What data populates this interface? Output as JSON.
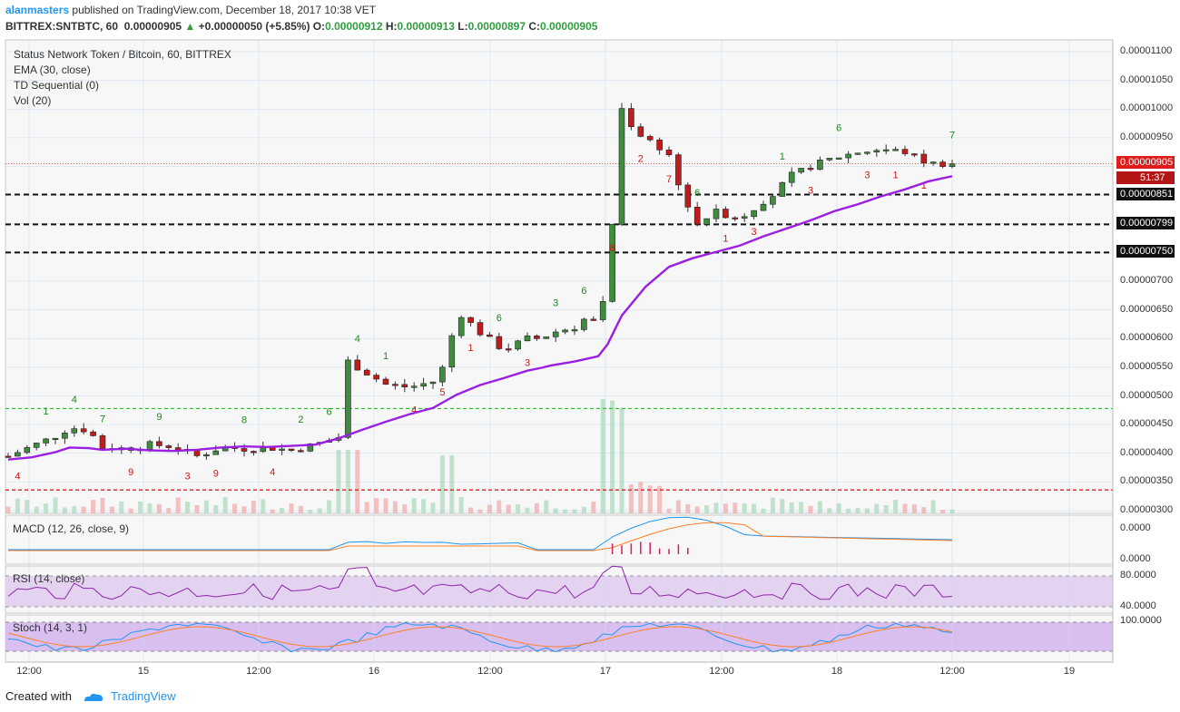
{
  "header": {
    "username": "alanmasters",
    "published_text": "published on TradingView.com, December 18, 2017 10:38 VET",
    "symbol": "BITTREX:SNTBTC, 60",
    "last": "0.00000905",
    "change": "+0.00000050 (+5.85%)",
    "o_label": "O:",
    "o": "0.00000912",
    "h_label": "H:",
    "h": "0.00000913",
    "l_label": "L:",
    "l": "0.00000897",
    "c_label": "C:",
    "c": "0.00000905"
  },
  "legend": {
    "title": "Status Network Token / Bitcoin, 60, BITTREX",
    "ema": "EMA (30, close)",
    "td": "TD Sequential (0)",
    "vol": "Vol (20)"
  },
  "indicators": {
    "macd": "MACD (12, 26, close, 9)",
    "rsi": "RSI (14, close)",
    "stoch": "Stoch (14, 3, 1)"
  },
  "price_boxes": {
    "last": "0.00000905",
    "countdown": "51:37",
    "level1": "0.00000851",
    "level2": "0.00000799",
    "level3": "0.00000750"
  },
  "footer": {
    "created_with": "Created with",
    "brand": "TradingView"
  },
  "colors": {
    "up": "#3f8c3f",
    "down": "#c41a1a",
    "ema": "#9b1fe0",
    "macd": "#2196f3",
    "signal": "#ff7f27",
    "rsi": "#8e24aa",
    "bg": "#f5f5f5",
    "grid": "#c8dcf0"
  },
  "chart_data": [
    {
      "type": "candlestick",
      "title": "Status Network Token / Bitcoin, 60, BITTREX",
      "y_ticks": [
        "0.00001100",
        "0.00001050",
        "0.00001000",
        "0.00000950",
        "0.00000900",
        "0.00000850",
        "0.00000800",
        "0.00000750",
        "0.00000700",
        "0.00000650",
        "0.00000600",
        "0.00000550",
        "0.00000500",
        "0.00000450",
        "0.00000400",
        "0.00000350",
        "0.00000300"
      ],
      "x_ticks": [
        "12:00",
        "15",
        "12:00",
        "16",
        "12:00",
        "17",
        "12:00",
        "18",
        "12:00",
        "19"
      ],
      "ylim": [
        2.98e-06,
        1.118e-05
      ],
      "horizontal_levels": [
        {
          "value": 8.51e-06,
          "style": "dashed-black"
        },
        {
          "value": 7.99e-06,
          "style": "dashed-black"
        },
        {
          "value": 7.5e-06,
          "style": "dashed-black"
        },
        {
          "value": 4.78e-06,
          "style": "dashed-green"
        },
        {
          "value": 3.36e-06,
          "style": "dashed-red"
        },
        {
          "value": 9.05e-06,
          "style": "dotted-red"
        }
      ],
      "ema_30": [
        [
          0,
          3.89e-06
        ],
        [
          5,
          3.93e-06
        ],
        [
          10,
          4.02e-06
        ],
        [
          13,
          4.1e-06
        ],
        [
          17,
          4.09e-06
        ],
        [
          20,
          4.06e-06
        ],
        [
          25,
          4.08e-06
        ],
        [
          30,
          4.05e-06
        ],
        [
          35,
          4.04e-06
        ],
        [
          40,
          4.06e-06
        ],
        [
          45,
          4.1e-06
        ],
        [
          50,
          4.12e-06
        ],
        [
          55,
          4.11e-06
        ],
        [
          60,
          4.13e-06
        ],
        [
          65,
          4.15e-06
        ],
        [
          70,
          4.26e-06
        ],
        [
          72,
          4.32e-06
        ],
        [
          75,
          4.41e-06
        ],
        [
          80,
          4.55e-06
        ],
        [
          85,
          4.68e-06
        ],
        [
          90,
          4.79e-06
        ],
        [
          95,
          5.02e-06
        ],
        [
          100,
          5.19e-06
        ],
        [
          105,
          5.31e-06
        ],
        [
          110,
          5.44e-06
        ],
        [
          113,
          5.49e-06
        ],
        [
          115,
          5.53e-06
        ],
        [
          120,
          5.6e-06
        ],
        [
          125,
          5.69e-06
        ],
        [
          127,
          5.9e-06
        ],
        [
          130,
          6.4e-06
        ],
        [
          135,
          6.9e-06
        ],
        [
          140,
          7.25e-06
        ],
        [
          145,
          7.4e-06
        ],
        [
          150,
          7.51e-06
        ],
        [
          155,
          7.62e-06
        ],
        [
          160,
          7.78e-06
        ],
        [
          165,
          7.92e-06
        ],
        [
          170,
          8.06e-06
        ],
        [
          175,
          8.22e-06
        ],
        [
          180,
          8.34e-06
        ],
        [
          185,
          8.48e-06
        ],
        [
          190,
          8.6e-06
        ],
        [
          195,
          8.74e-06
        ],
        [
          200,
          8.83e-06
        ]
      ],
      "volume": "relative bars, peaks at day-15 breakout and day-17 breakout",
      "macd": {
        "ticks": [
          "0.0000",
          "0.0000"
        ]
      },
      "rsi": {
        "ticks": [
          "80.0000",
          "40.0000"
        ]
      },
      "stoch": {
        "ticks": [
          "100.0000"
        ]
      }
    }
  ]
}
